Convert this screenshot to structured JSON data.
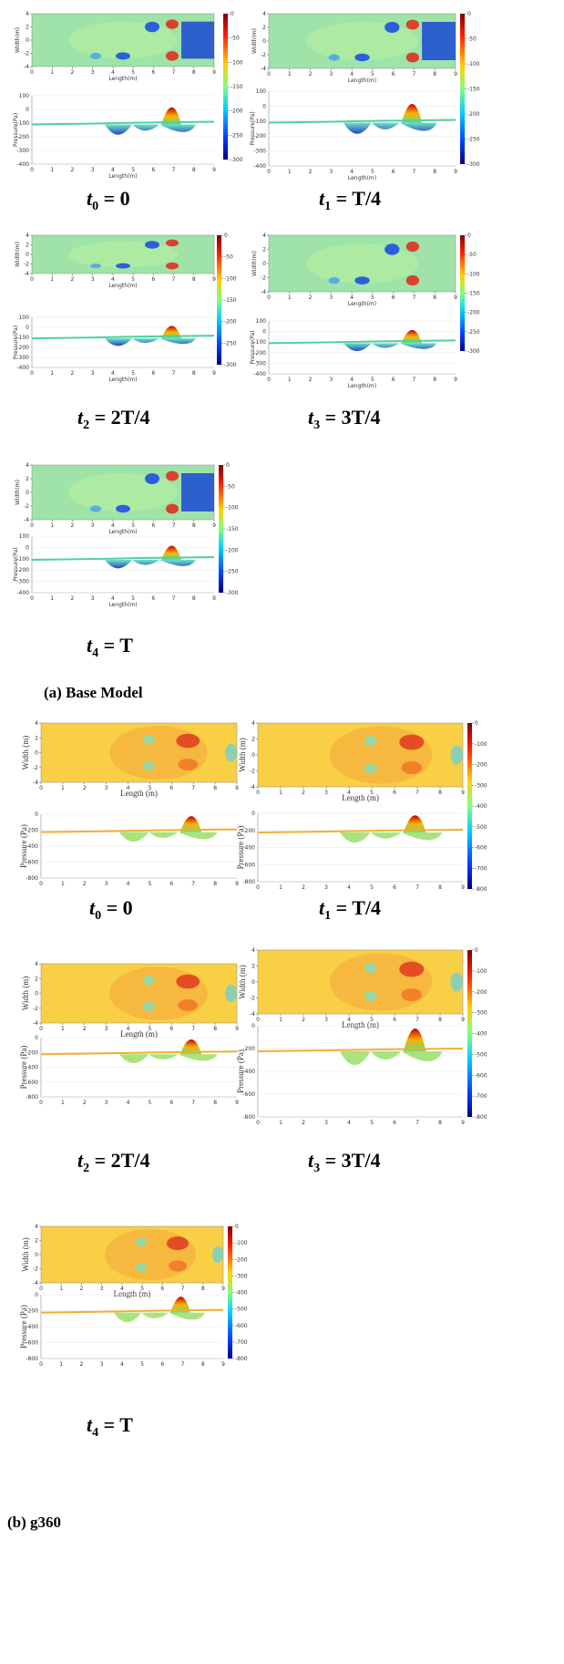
{
  "sections": [
    {
      "caption": "(a)  Base Model",
      "length_label": "Length(m)",
      "width_label": "Width(m)",
      "pressure_label": "Pressure(Pa)",
      "length_ticks": [
        0,
        1,
        2,
        3,
        4,
        5,
        6,
        7,
        8,
        9
      ],
      "width_ticks": [
        4,
        2,
        0,
        -2,
        -4
      ],
      "pressure_ticks": [
        100,
        0,
        -100,
        -200,
        -300,
        -400
      ],
      "colorbar_ticks": [
        0,
        -50,
        -100,
        -150,
        -200,
        -250,
        -300
      ],
      "panels": [
        {
          "var": "t",
          "sub": "0",
          "rhs": " = 0"
        },
        {
          "var": "t",
          "sub": "1",
          "rhs": " = T/4"
        },
        {
          "var": "t",
          "sub": "2",
          "rhs": " = 2T/4"
        },
        {
          "var": "t",
          "sub": "3",
          "rhs": " = 3T/4"
        },
        {
          "var": "t",
          "sub": "4",
          "rhs": " = T"
        }
      ]
    },
    {
      "caption": "(b) g360",
      "length_label": "Length (m)",
      "width_label": "Width (m)",
      "pressure_label": "Pressure (Pa)",
      "length_ticks": [
        0,
        1,
        2,
        3,
        4,
        5,
        6,
        7,
        8,
        9
      ],
      "width_ticks": [
        4,
        2,
        0,
        -2,
        -4
      ],
      "pressure_ticks": [
        0,
        -200,
        -400,
        -600,
        -800
      ],
      "colorbar_ticks": [
        0,
        -100,
        -200,
        -300,
        -400,
        -500,
        -600,
        -700,
        -800
      ],
      "panels": [
        {
          "var": "t",
          "sub": "0",
          "rhs": " = 0"
        },
        {
          "var": "t",
          "sub": "1",
          "rhs": " = T/4"
        },
        {
          "var": "t",
          "sub": "2",
          "rhs": " = 2T/4"
        },
        {
          "var": "t",
          "sub": "3",
          "rhs": " = 3T/4"
        },
        {
          "var": "t",
          "sub": "4",
          "rhs": " = T"
        }
      ]
    }
  ]
}
